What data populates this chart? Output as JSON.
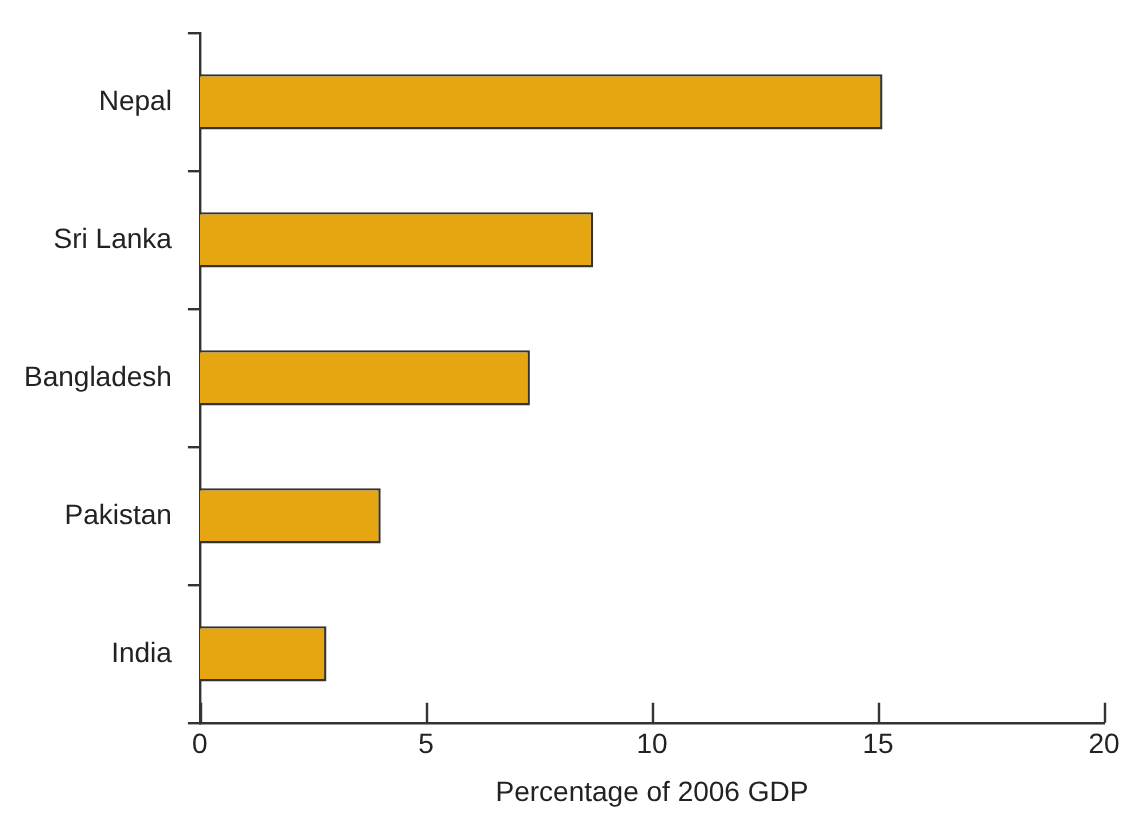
{
  "chart_data": {
    "type": "bar",
    "orientation": "horizontal",
    "xlabel": "Percentage of 2006 GDP",
    "categories": [
      "Nepal",
      "Sri Lanka",
      "Bangladesh",
      "Pakistan",
      "India"
    ],
    "values": [
      15.1,
      8.7,
      7.3,
      4.0,
      2.8
    ],
    "color": "#e5a612",
    "xlim": [
      0,
      20
    ],
    "xticks": [
      0,
      5,
      10,
      15,
      20
    ],
    "grid": false,
    "legend": false
  }
}
